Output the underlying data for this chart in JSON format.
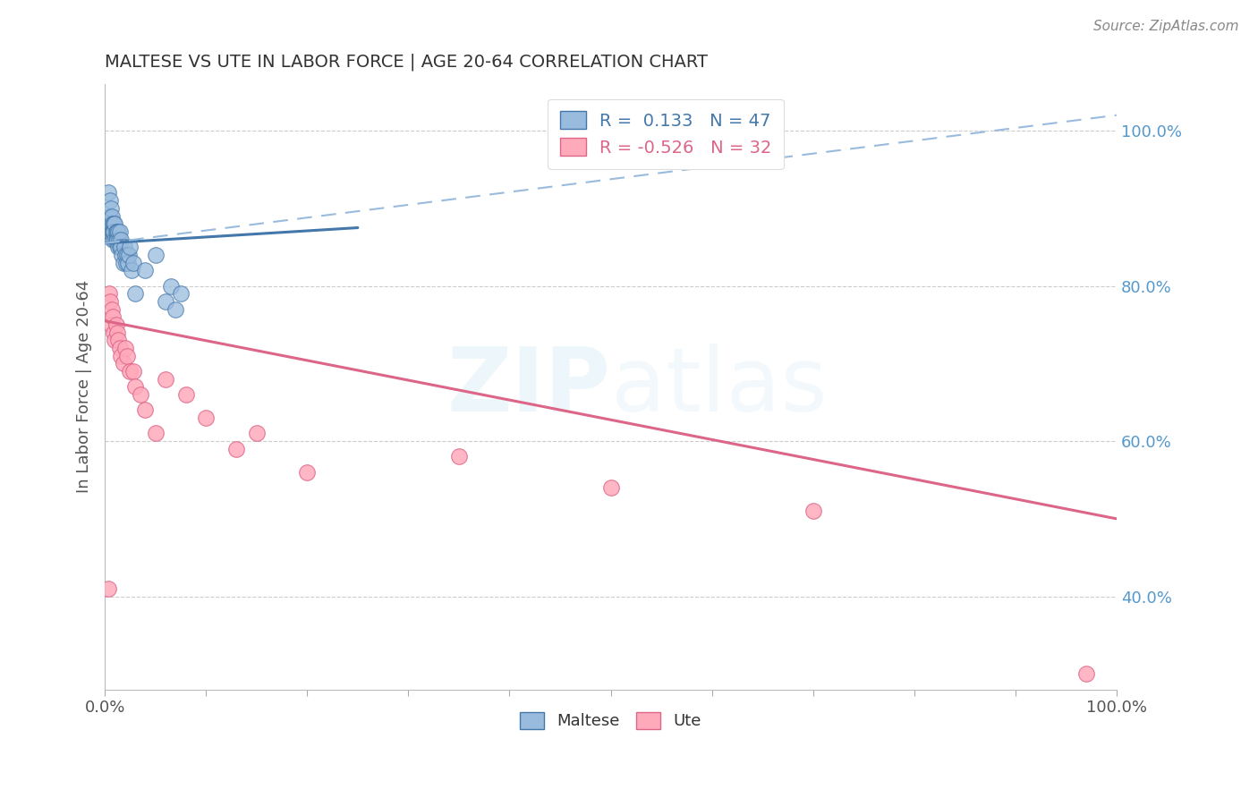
{
  "title": "MALTESE VS UTE IN LABOR FORCE | AGE 20-64 CORRELATION CHART",
  "source": "Source: ZipAtlas.com",
  "ylabel": "In Labor Force | Age 20-64",
  "xlim": [
    0.0,
    1.0
  ],
  "ylim": [
    0.28,
    1.06
  ],
  "y_tick_vals_right": [
    0.4,
    0.6,
    0.8,
    1.0
  ],
  "y_tick_labels_right": [
    "40.0%",
    "60.0%",
    "80.0%",
    "100.0%"
  ],
  "maltese_R": 0.133,
  "maltese_N": 47,
  "ute_R": -0.526,
  "ute_N": 32,
  "maltese_color": "#99BBDD",
  "maltese_edge_color": "#4477AA",
  "ute_color": "#FFAABB",
  "ute_edge_color": "#DD6688",
  "maltese_scatter_x": [
    0.002,
    0.003,
    0.004,
    0.004,
    0.005,
    0.005,
    0.005,
    0.006,
    0.006,
    0.007,
    0.007,
    0.008,
    0.008,
    0.008,
    0.009,
    0.009,
    0.01,
    0.01,
    0.011,
    0.011,
    0.012,
    0.012,
    0.013,
    0.013,
    0.014,
    0.015,
    0.015,
    0.016,
    0.016,
    0.017,
    0.018,
    0.019,
    0.02,
    0.021,
    0.022,
    0.023,
    0.024,
    0.025,
    0.026,
    0.028,
    0.03,
    0.04,
    0.05,
    0.06,
    0.065,
    0.07,
    0.075
  ],
  "maltese_scatter_y": [
    0.88,
    0.92,
    0.89,
    0.87,
    0.91,
    0.89,
    0.87,
    0.9,
    0.88,
    0.87,
    0.89,
    0.88,
    0.87,
    0.86,
    0.88,
    0.87,
    0.86,
    0.88,
    0.87,
    0.86,
    0.87,
    0.86,
    0.85,
    0.87,
    0.86,
    0.85,
    0.87,
    0.86,
    0.85,
    0.84,
    0.83,
    0.85,
    0.84,
    0.83,
    0.84,
    0.83,
    0.84,
    0.85,
    0.82,
    0.83,
    0.79,
    0.82,
    0.84,
    0.78,
    0.8,
    0.77,
    0.79
  ],
  "ute_scatter_x": [
    0.003,
    0.004,
    0.005,
    0.006,
    0.007,
    0.008,
    0.009,
    0.01,
    0.011,
    0.012,
    0.013,
    0.015,
    0.016,
    0.018,
    0.02,
    0.022,
    0.025,
    0.028,
    0.03,
    0.035,
    0.04,
    0.05,
    0.06,
    0.08,
    0.1,
    0.13,
    0.15,
    0.2,
    0.35,
    0.5,
    0.7,
    0.97
  ],
  "ute_scatter_y": [
    0.41,
    0.79,
    0.78,
    0.75,
    0.77,
    0.76,
    0.74,
    0.73,
    0.75,
    0.74,
    0.73,
    0.72,
    0.71,
    0.7,
    0.72,
    0.71,
    0.69,
    0.69,
    0.67,
    0.66,
    0.64,
    0.61,
    0.68,
    0.66,
    0.63,
    0.59,
    0.61,
    0.56,
    0.58,
    0.54,
    0.51,
    0.3
  ],
  "maltese_line_x": [
    0.0,
    0.25
  ],
  "maltese_line_y": [
    0.855,
    0.875
  ],
  "ute_line_x": [
    0.0,
    1.0
  ],
  "ute_line_y": [
    0.755,
    0.5
  ],
  "dashed_line_x": [
    0.0,
    1.0
  ],
  "dashed_line_y": [
    0.855,
    1.02
  ],
  "watermark_zip": "ZIP",
  "watermark_atlas": "atlas",
  "background_color": "#FFFFFF",
  "grid_color": "#CCCCCC",
  "title_color": "#333333",
  "axis_label_color": "#555555",
  "right_tick_color": "#5599CC",
  "x_tick_positions": [
    0.0,
    0.1,
    0.2,
    0.3,
    0.4,
    0.5,
    0.6,
    0.7,
    0.8,
    0.9,
    1.0
  ]
}
